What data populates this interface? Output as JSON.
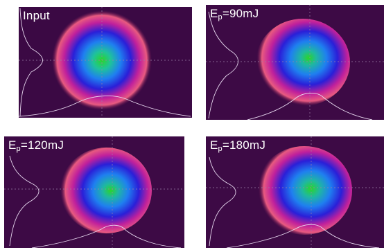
{
  "panels": [
    {
      "id": "p1",
      "label": {
        "main": "Input",
        "sub": "",
        "rest": ""
      }
    },
    {
      "id": "p2",
      "label": {
        "main": "E",
        "sub": "p",
        "rest": "=90mJ"
      }
    },
    {
      "id": "p3",
      "label": {
        "main": "E",
        "sub": "p",
        "rest": "=120mJ"
      }
    },
    {
      "id": "p4",
      "label": {
        "main": "E",
        "sub": "p",
        "rest": "=180mJ"
      }
    }
  ],
  "colors": {
    "background": "#3d0a45",
    "profile_line": "#e6d7ee",
    "crosshair": "#9a7fa6",
    "label_text": "#ffffff"
  }
}
